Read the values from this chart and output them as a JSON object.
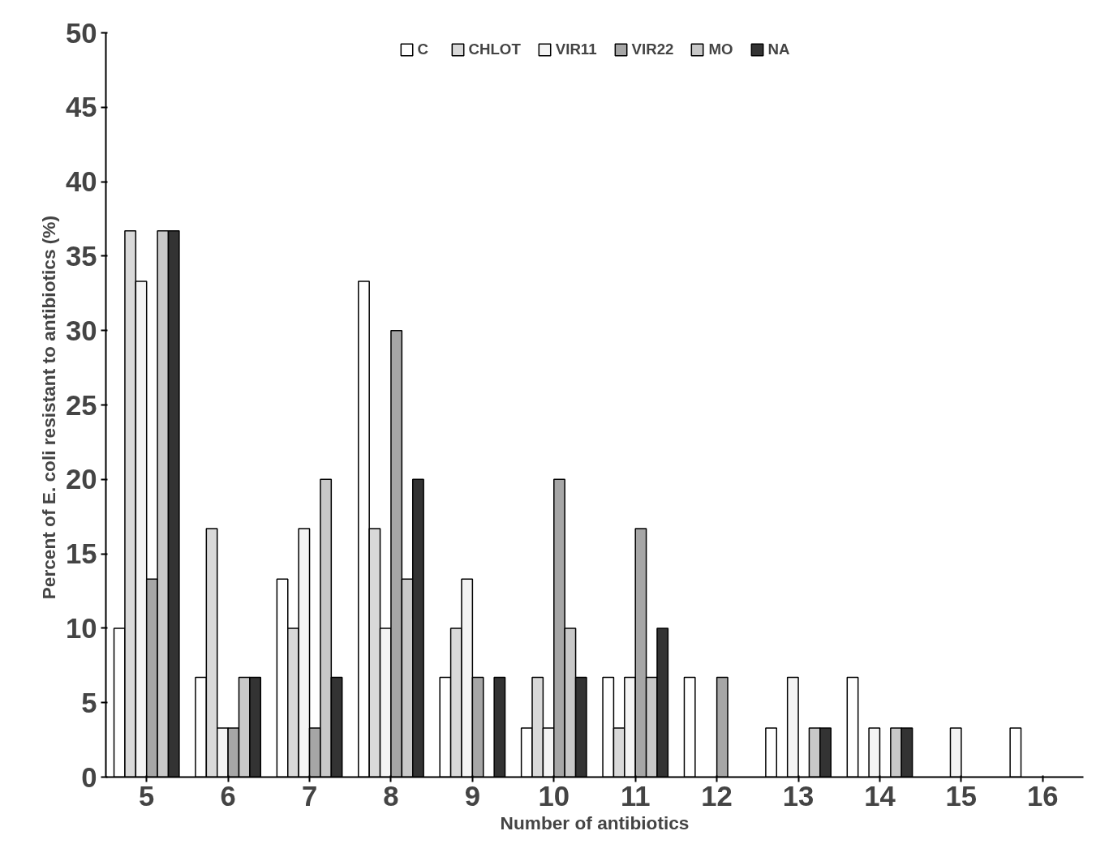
{
  "chart_data": {
    "type": "bar",
    "xlabel": "Number of antibiotics",
    "ylabel": "Percent of E. coli  resistant to antibiotics (%)",
    "categories": [
      "5",
      "6",
      "7",
      "8",
      "9",
      "10",
      "11",
      "12",
      "13",
      "14",
      "15",
      "16"
    ],
    "series": [
      {
        "name": "C",
        "color": "#ffffff",
        "values": [
          10,
          6.7,
          13.3,
          33.3,
          6.7,
          3.3,
          6.7,
          6.7,
          3.3,
          6.7,
          0,
          3.3
        ]
      },
      {
        "name": "CHLOT",
        "color": "#d9d9d9",
        "values": [
          36.7,
          16.7,
          10,
          16.7,
          10,
          6.7,
          3.3,
          0,
          0,
          0,
          0,
          0
        ]
      },
      {
        "name": "VIR11",
        "color": "#f4f4f4",
        "values": [
          33.3,
          3.3,
          16.7,
          10,
          13.3,
          3.3,
          6.7,
          0,
          6.7,
          3.3,
          3.3,
          0
        ]
      },
      {
        "name": "VIR22",
        "color": "#a6a6a6",
        "values": [
          13.3,
          3.3,
          3.3,
          30,
          6.7,
          20,
          16.7,
          6.7,
          0,
          0,
          0,
          0
        ]
      },
      {
        "name": "MO",
        "color": "#c8c8c8",
        "values": [
          36.7,
          6.7,
          20,
          13.3,
          0,
          10,
          6.7,
          0,
          3.3,
          3.3,
          0,
          0
        ]
      },
      {
        "name": "NA",
        "color": "#333333",
        "values": [
          36.7,
          6.7,
          6.7,
          20,
          6.7,
          6.7,
          10,
          0,
          3.3,
          3.3,
          0,
          0
        ]
      }
    ],
    "ylim": [
      0,
      50
    ],
    "yticks": [
      0,
      5,
      10,
      15,
      20,
      25,
      30,
      35,
      40,
      45,
      50
    ],
    "grid": false,
    "legend": "top"
  }
}
